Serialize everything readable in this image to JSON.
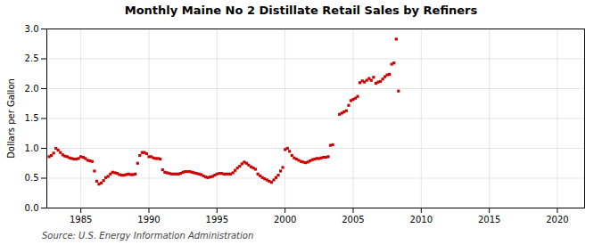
{
  "chart_data": {
    "type": "scatter",
    "title": "Monthly Maine No 2 Distillate Retail Sales by Refiners",
    "ylabel": "Dollars per Gallon",
    "annotations": [
      "Source: U.S. Energy Information Administration"
    ],
    "color": "#cc0000",
    "marker": "square",
    "grid": true,
    "xlim": [
      1982.5,
      2022
    ],
    "ylim": [
      0.0,
      3.0
    ],
    "xticks": [
      1985,
      1990,
      1995,
      2000,
      2005,
      2010,
      2015,
      2020
    ],
    "yticks": [
      {
        "value": 0.0,
        "label": "0.0"
      },
      0.5,
      {
        "value": 1.0,
        "label": "1.0"
      },
      1.5,
      {
        "value": 2.0,
        "label": "2.0"
      },
      2.5,
      {
        "value": 3.0,
        "label": "3.0"
      }
    ],
    "x": [
      1982.67,
      1982.83,
      1983.0,
      1983.17,
      1983.33,
      1983.5,
      1983.67,
      1983.83,
      1984.0,
      1984.17,
      1984.33,
      1984.5,
      1984.67,
      1984.83,
      1985.0,
      1985.17,
      1985.33,
      1985.5,
      1985.67,
      1985.83,
      1986.0,
      1986.17,
      1986.33,
      1986.5,
      1986.67,
      1986.83,
      1987.0,
      1987.17,
      1987.33,
      1987.5,
      1987.67,
      1987.83,
      1988.0,
      1988.17,
      1988.33,
      1988.5,
      1988.67,
      1988.83,
      1989.0,
      1989.17,
      1989.33,
      1989.5,
      1989.67,
      1989.83,
      1990.0,
      1990.17,
      1990.33,
      1990.5,
      1990.67,
      1990.83,
      1991.0,
      1991.17,
      1991.33,
      1991.5,
      1991.67,
      1991.83,
      1992.0,
      1992.17,
      1992.33,
      1992.5,
      1992.67,
      1992.83,
      1993.0,
      1993.17,
      1993.33,
      1993.5,
      1993.67,
      1993.83,
      1994.0,
      1994.17,
      1994.33,
      1994.5,
      1994.67,
      1994.83,
      1995.0,
      1995.17,
      1995.33,
      1995.5,
      1995.67,
      1995.83,
      1996.0,
      1996.17,
      1996.33,
      1996.5,
      1996.67,
      1996.83,
      1997.0,
      1997.17,
      1997.33,
      1997.5,
      1997.67,
      1997.83,
      1998.0,
      1998.17,
      1998.33,
      1998.5,
      1998.67,
      1998.83,
      1999.0,
      1999.17,
      1999.33,
      1999.5,
      1999.67,
      1999.83,
      2000.0,
      2000.17,
      2000.33,
      2000.5,
      2000.67,
      2000.83,
      2001.0,
      2001.17,
      2001.33,
      2001.5,
      2001.67,
      2001.83,
      2002.0,
      2002.17,
      2002.33,
      2002.5,
      2002.67,
      2002.83,
      2003.0,
      2003.17,
      2003.33,
      2003.5,
      2004.0,
      2004.17,
      2004.33,
      2004.5,
      2004.67,
      2004.83,
      2005.0,
      2005.17,
      2005.33,
      2005.5,
      2005.67,
      2005.83,
      2006.0,
      2006.17,
      2006.33,
      2006.5,
      2006.67,
      2006.83,
      2007.0,
      2007.17,
      2007.33,
      2007.5,
      2007.67,
      2007.83,
      2008.0,
      2008.17,
      2008.33
    ],
    "values": [
      0.86,
      0.88,
      0.92,
      1.0,
      0.97,
      0.93,
      0.89,
      0.87,
      0.86,
      0.84,
      0.83,
      0.82,
      0.82,
      0.83,
      0.86,
      0.85,
      0.83,
      0.8,
      0.79,
      0.78,
      0.62,
      0.45,
      0.4,
      0.42,
      0.46,
      0.51,
      0.53,
      0.57,
      0.6,
      0.59,
      0.58,
      0.56,
      0.55,
      0.55,
      0.56,
      0.57,
      0.56,
      0.56,
      0.57,
      0.75,
      0.88,
      0.93,
      0.93,
      0.91,
      0.86,
      0.86,
      0.84,
      0.83,
      0.83,
      0.82,
      0.64,
      0.6,
      0.59,
      0.58,
      0.57,
      0.57,
      0.57,
      0.57,
      0.58,
      0.6,
      0.61,
      0.61,
      0.61,
      0.6,
      0.59,
      0.58,
      0.57,
      0.56,
      0.54,
      0.52,
      0.51,
      0.52,
      0.53,
      0.55,
      0.57,
      0.58,
      0.58,
      0.57,
      0.57,
      0.57,
      0.57,
      0.59,
      0.63,
      0.67,
      0.7,
      0.74,
      0.77,
      0.75,
      0.72,
      0.69,
      0.67,
      0.65,
      0.57,
      0.54,
      0.51,
      0.49,
      0.47,
      0.45,
      0.43,
      0.47,
      0.51,
      0.55,
      0.62,
      0.68,
      0.98,
      1.0,
      0.95,
      0.88,
      0.84,
      0.82,
      0.8,
      0.78,
      0.77,
      0.76,
      0.77,
      0.79,
      0.81,
      0.82,
      0.83,
      0.83,
      0.84,
      0.85,
      0.85,
      0.86,
      1.05,
      1.06,
      1.57,
      1.59,
      1.61,
      1.63,
      1.72,
      1.8,
      1.82,
      1.84,
      1.87,
      2.1,
      2.13,
      2.11,
      2.14,
      2.17,
      2.14,
      2.19,
      2.09,
      2.11,
      2.12,
      2.16,
      2.2,
      2.23,
      2.24,
      2.41,
      2.43,
      2.83,
      1.96
    ]
  }
}
